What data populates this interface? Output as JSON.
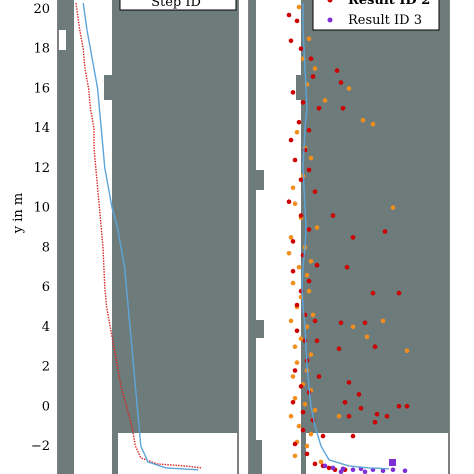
{
  "chart_data": [
    {
      "type": "line",
      "panel": "left",
      "ylabel": "y in m",
      "ylim": [
        -3.4,
        20.4
      ],
      "yticks": [
        -2,
        0,
        2,
        4,
        6,
        8,
        10,
        12,
        14,
        16,
        18,
        20
      ],
      "legend_partial": "Step ID",
      "series": [
        {
          "color": "#d62728",
          "style": "solid+dotted",
          "points": [
            [
              0.1,
              20.3
            ],
            [
              0.12,
              19
            ],
            [
              0.14,
              18
            ],
            [
              0.15,
              17
            ],
            [
              0.17,
              16
            ],
            [
              0.18,
              15
            ],
            [
              0.2,
              14
            ],
            [
              0.2,
              13
            ],
            [
              0.21,
              12
            ],
            [
              0.22,
              11
            ],
            [
              0.23,
              10
            ],
            [
              0.25,
              8
            ],
            [
              0.26,
              6
            ],
            [
              0.27,
              5
            ],
            [
              0.29,
              4
            ],
            [
              0.31,
              3
            ],
            [
              0.33,
              2
            ],
            [
              0.35,
              1
            ],
            [
              0.38,
              0
            ],
            [
              0.41,
              -1
            ],
            [
              0.43,
              -2
            ],
            [
              0.46,
              -2.6
            ],
            [
              0.55,
              -2.9
            ],
            [
              0.7,
              -3.0
            ],
            [
              0.8,
              -3.1
            ]
          ]
        },
        {
          "color": "#5da5d9",
          "style": "solid",
          "points": [
            [
              0.14,
              20.3
            ],
            [
              0.16,
              19
            ],
            [
              0.18,
              18
            ],
            [
              0.2,
              17
            ],
            [
              0.22,
              16
            ],
            [
              0.23,
              15
            ],
            [
              0.24,
              14
            ],
            [
              0.25,
              13
            ],
            [
              0.26,
              12
            ],
            [
              0.28,
              11
            ],
            [
              0.3,
              10
            ],
            [
              0.33,
              9
            ],
            [
              0.35,
              8
            ],
            [
              0.37,
              7
            ],
            [
              0.38,
              6
            ],
            [
              0.39,
              5
            ],
            [
              0.4,
              4
            ],
            [
              0.41,
              3
            ],
            [
              0.42,
              2
            ],
            [
              0.43,
              1
            ],
            [
              0.44,
              0
            ],
            [
              0.45,
              -1
            ],
            [
              0.46,
              -2
            ],
            [
              0.5,
              -2.8
            ],
            [
              0.6,
              -3.1
            ],
            [
              0.78,
              -3.2
            ]
          ]
        }
      ]
    },
    {
      "type": "scatter",
      "panel": "right",
      "ylim": [
        -3.4,
        20.4
      ],
      "legend": [
        {
          "label": "Result ID 2",
          "color": "#cc0000"
        },
        {
          "label": "Result ID 3",
          "color": "#7e2fd6"
        }
      ],
      "series": [
        {
          "color": "#f28e1c",
          "points": [
            [
              0.25,
              20.1
            ],
            [
              0.3,
              18.5
            ],
            [
              0.27,
              17.5
            ],
            [
              0.33,
              17.0
            ],
            [
              0.29,
              16.2
            ],
            [
              0.5,
              16.0
            ],
            [
              0.38,
              15.4
            ],
            [
              0.57,
              14.4
            ],
            [
              0.62,
              14.2
            ],
            [
              0.24,
              13.8
            ],
            [
              0.28,
              13.0
            ],
            [
              0.31,
              12.5
            ],
            [
              0.27,
              11.6
            ],
            [
              0.22,
              11.0
            ],
            [
              0.23,
              10.2
            ],
            [
              0.72,
              10.0
            ],
            [
              0.26,
              9.5
            ],
            [
              0.34,
              9.0
            ],
            [
              0.21,
              8.5
            ],
            [
              0.28,
              8.0
            ],
            [
              0.2,
              7.7
            ],
            [
              0.31,
              7.3
            ],
            [
              0.25,
              7.0
            ],
            [
              0.29,
              6.6
            ],
            [
              0.22,
              6.2
            ],
            [
              0.3,
              5.8
            ],
            [
              0.26,
              5.5
            ],
            [
              0.24,
              5.0
            ],
            [
              0.32,
              4.6
            ],
            [
              0.21,
              4.3
            ],
            [
              0.29,
              4.0
            ],
            [
              0.52,
              4.0
            ],
            [
              0.67,
              4.3
            ],
            [
              0.59,
              3.5
            ],
            [
              0.26,
              3.4
            ],
            [
              0.23,
              3.0
            ],
            [
              0.31,
              2.6
            ],
            [
              0.79,
              2.8
            ],
            [
              0.24,
              2.2
            ],
            [
              0.29,
              1.8
            ],
            [
              0.22,
              1.5
            ],
            [
              0.27,
              1.1
            ],
            [
              0.31,
              0.8
            ],
            [
              0.23,
              0.4
            ],
            [
              0.28,
              0.1
            ],
            [
              0.33,
              -0.2
            ],
            [
              0.21,
              -0.5
            ],
            [
              0.45,
              -0.5
            ],
            [
              0.25,
              -1.0
            ],
            [
              0.31,
              -1.4
            ],
            [
              0.24,
              -1.8
            ],
            [
              0.29,
              -2.0
            ],
            [
              0.23,
              -2.5
            ],
            [
              0.36,
              -2.8
            ]
          ]
        },
        {
          "color": "#cc0000",
          "points": [
            [
              0.2,
              19.7
            ],
            [
              0.24,
              19.4
            ],
            [
              0.33,
              19.6
            ],
            [
              0.35,
              20.0
            ],
            [
              0.21,
              18.4
            ],
            [
              0.26,
              18.0
            ],
            [
              0.31,
              17.5
            ],
            [
              0.44,
              16.9
            ],
            [
              0.46,
              16.3
            ],
            [
              0.32,
              16.6
            ],
            [
              0.22,
              15.8
            ],
            [
              0.27,
              15.3
            ],
            [
              0.35,
              15.0
            ],
            [
              0.47,
              15.0
            ],
            [
              0.25,
              14.3
            ],
            [
              0.3,
              13.9
            ],
            [
              0.21,
              13.4
            ],
            [
              0.28,
              12.9
            ],
            [
              0.23,
              12.4
            ],
            [
              0.3,
              11.9
            ],
            [
              0.26,
              11.4
            ],
            [
              0.33,
              10.8
            ],
            [
              0.2,
              10.3
            ],
            [
              0.26,
              9.6
            ],
            [
              0.42,
              9.6
            ],
            [
              0.3,
              8.9
            ],
            [
              0.22,
              8.3
            ],
            [
              0.52,
              8.5
            ],
            [
              0.68,
              8.8
            ],
            [
              0.27,
              7.6
            ],
            [
              0.34,
              7.1
            ],
            [
              0.49,
              7.0
            ],
            [
              0.22,
              6.8
            ],
            [
              0.3,
              6.3
            ],
            [
              0.26,
              5.8
            ],
            [
              0.62,
              5.7
            ],
            [
              0.75,
              5.7
            ],
            [
              0.24,
              5.1
            ],
            [
              0.28,
              4.6
            ],
            [
              0.33,
              4.3
            ],
            [
              0.46,
              4.2
            ],
            [
              0.58,
              4.2
            ],
            [
              0.24,
              3.8
            ],
            [
              0.28,
              3.3
            ],
            [
              0.34,
              3.3
            ],
            [
              0.45,
              2.9
            ],
            [
              0.63,
              3.0
            ],
            [
              0.29,
              2.3
            ],
            [
              0.23,
              1.8
            ],
            [
              0.35,
              1.5
            ],
            [
              0.26,
              1.0
            ],
            [
              0.5,
              1.2
            ],
            [
              0.55,
              0.6
            ],
            [
              0.3,
              0.7
            ],
            [
              0.22,
              0.2
            ],
            [
              0.48,
              0.2
            ],
            [
              0.56,
              -0.1
            ],
            [
              0.64,
              -0.4
            ],
            [
              0.75,
              0.0
            ],
            [
              0.79,
              0.0
            ],
            [
              0.27,
              -0.3
            ],
            [
              0.32,
              -0.7
            ],
            [
              0.5,
              -0.5
            ],
            [
              0.63,
              -0.8
            ],
            [
              0.69,
              -0.5
            ],
            [
              0.27,
              -1.2
            ],
            [
              0.37,
              -1.5
            ],
            [
              0.52,
              -1.5
            ],
            [
              0.23,
              -1.9
            ],
            [
              0.29,
              -2.4
            ],
            [
              0.33,
              -2.9
            ],
            [
              0.37,
              -3.0
            ],
            [
              0.4,
              -3.1
            ],
            [
              0.43,
              -3.2
            ],
            [
              0.48,
              -3.2
            ]
          ]
        },
        {
          "color": "#7e2fd6",
          "points": [
            [
              0.38,
              -3.0
            ],
            [
              0.42,
              -3.1
            ],
            [
              0.47,
              -3.15
            ],
            [
              0.52,
              -3.2
            ],
            [
              0.56,
              -3.15
            ],
            [
              0.62,
              -3.2
            ],
            [
              0.67,
              -3.25
            ],
            [
              0.72,
              -3.2
            ],
            [
              0.78,
              -3.25
            ],
            [
              0.46,
              -3.3
            ],
            [
              0.58,
              -3.3
            ]
          ]
        },
        {
          "color": "#5da5d9",
          "line": true,
          "points": [
            [
              0.27,
              20.3
            ],
            [
              0.27,
              19
            ],
            [
              0.275,
              18
            ],
            [
              0.28,
              17
            ],
            [
              0.285,
              16
            ],
            [
              0.29,
              15
            ],
            [
              0.28,
              14
            ],
            [
              0.275,
              13
            ],
            [
              0.27,
              12
            ],
            [
              0.275,
              11
            ],
            [
              0.28,
              10
            ],
            [
              0.285,
              9
            ],
            [
              0.28,
              8
            ],
            [
              0.27,
              7
            ],
            [
              0.265,
              6
            ],
            [
              0.27,
              5
            ],
            [
              0.28,
              4
            ],
            [
              0.285,
              3
            ],
            [
              0.29,
              2
            ],
            [
              0.3,
              1
            ],
            [
              0.31,
              0
            ],
            [
              0.33,
              -1
            ],
            [
              0.36,
              -2
            ],
            [
              0.4,
              -2.7
            ],
            [
              0.5,
              -3.0
            ],
            [
              0.6,
              -3.1
            ],
            [
              0.7,
              -3.15
            ]
          ]
        }
      ]
    }
  ]
}
